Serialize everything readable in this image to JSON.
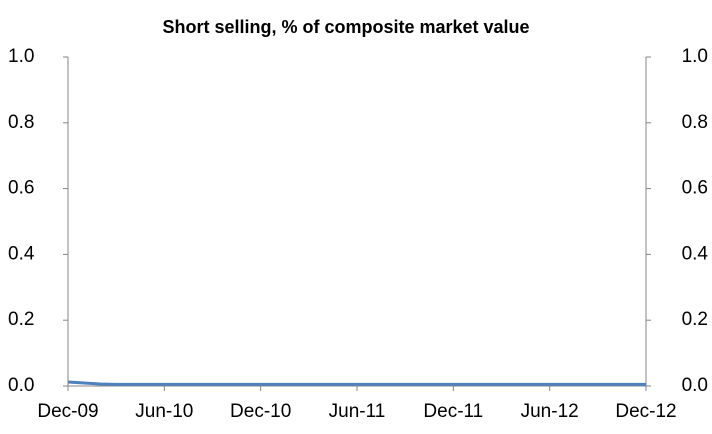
{
  "chart_data": {
    "type": "line",
    "title": "Short selling, % of composite market value",
    "categories": [
      "Dec-09",
      null,
      null,
      null,
      null,
      null,
      "Jun-10",
      null,
      null,
      null,
      null,
      null,
      "Dec-10",
      null,
      null,
      null,
      null,
      null,
      "Jun-11",
      null,
      null,
      null,
      null,
      null,
      "Dec-11",
      null,
      null,
      null,
      null,
      null,
      "Jun-12",
      null,
      null,
      null,
      null,
      null,
      "Dec-12"
    ],
    "series": [
      {
        "name": "Short selling",
        "color": "#4f81bd",
        "values": [
          0.012,
          0.009,
          0.006,
          0.005,
          0.005,
          0.005,
          0.005,
          0.005,
          0.005,
          0.005,
          0.005,
          0.005,
          0.005,
          0.005,
          0.005,
          0.005,
          0.005,
          0.005,
          0.005,
          0.005,
          0.005,
          0.005,
          0.005,
          0.005,
          0.005,
          0.005,
          0.005,
          0.005,
          0.005,
          0.005,
          0.005,
          0.005,
          0.005,
          0.005,
          0.005,
          0.005,
          0.005
        ]
      }
    ],
    "ylim": [
      0,
      1
    ],
    "yticks": [
      {
        "value": 0,
        "label": "0.0"
      },
      0.2,
      0.4,
      0.6,
      0.8,
      {
        "value": 1,
        "label": "1.0"
      }
    ],
    "y2lim": [
      0,
      1
    ],
    "y2ticks": [
      {
        "value": 0,
        "label": "0.0"
      },
      0.2,
      0.4,
      0.6,
      0.8,
      {
        "value": 1,
        "label": "1.0"
      }
    ],
    "grid": false
  }
}
